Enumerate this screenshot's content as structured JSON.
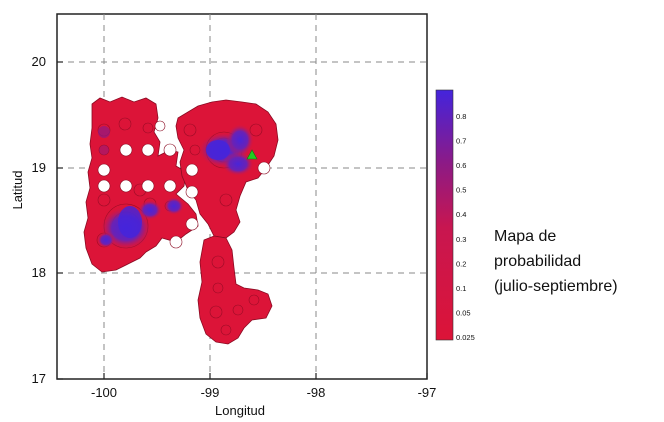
{
  "map": {
    "xlabel": "Longitud",
    "ylabel": "Latitud",
    "x_ticks": [
      "-100",
      "-99",
      "-98",
      "-97"
    ],
    "y_ticks": [
      "20",
      "19",
      "18",
      "17"
    ],
    "x_range": [
      -100.5,
      -97
    ],
    "y_range": [
      17,
      20.5
    ],
    "grid": true,
    "marker": {
      "type": "triangle",
      "lon": -98.63,
      "lat": 19.11,
      "color": "#22cc22"
    }
  },
  "colorbar": {
    "labels": [
      "0.8",
      "0.7",
      "0.6",
      "0.5",
      "0.4",
      "0.3",
      "0.2",
      "0.1",
      "0.05",
      "0.025"
    ],
    "colors": {
      "low": "#dc1438",
      "mid": "#8e1a84",
      "high": "#4424dc"
    }
  },
  "caption": {
    "line1": "Mapa de",
    "line2": "probabilidad",
    "line3": "(julio-septiembre)"
  }
}
